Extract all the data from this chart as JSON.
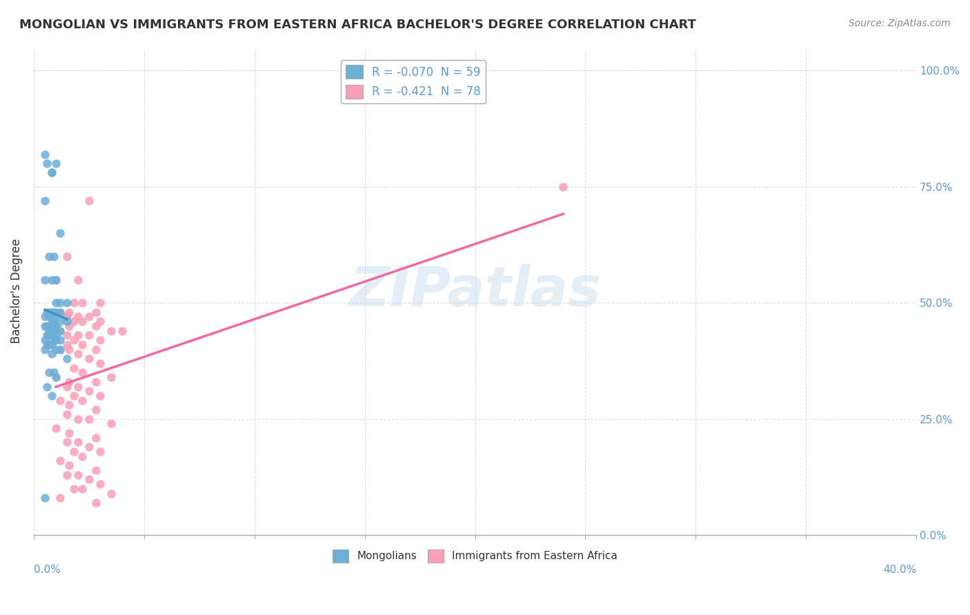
{
  "title": "MONGOLIAN VS IMMIGRANTS FROM EASTERN AFRICA BACHELOR'S DEGREE CORRELATION CHART",
  "source": "Source: ZipAtlas.com",
  "ylabel": "Bachelor's Degree",
  "ylabel_ticks": [
    "0.0%",
    "25.0%",
    "50.0%",
    "75.0%",
    "100.0%"
  ],
  "ylabel_tick_vals": [
    0.0,
    0.25,
    0.5,
    0.75,
    1.0
  ],
  "xlim": [
    0.0,
    0.4
  ],
  "ylim": [
    0.0,
    1.05
  ],
  "legend1_label": "R = -0.070  N = 59",
  "legend2_label": "R = -0.421  N = 78",
  "legend_bottom": "Mongolians",
  "legend_bottom2": "Immigrants from Eastern Africa",
  "blue_color": "#6baed6",
  "pink_color": "#fa9fb5",
  "trend_blue_color": "#4292c6",
  "trend_pink_color": "#f768a1",
  "trend_dashed_color": "#aaaaaa",
  "blue_scatter_x": [
    0.005,
    0.008,
    0.005,
    0.006,
    0.01,
    0.008,
    0.012,
    0.007,
    0.009,
    0.005,
    0.008,
    0.01,
    0.01,
    0.012,
    0.015,
    0.008,
    0.006,
    0.007,
    0.009,
    0.01,
    0.012,
    0.005,
    0.007,
    0.008,
    0.01,
    0.008,
    0.009,
    0.012,
    0.015,
    0.008,
    0.005,
    0.006,
    0.01,
    0.007,
    0.008,
    0.009,
    0.012,
    0.01,
    0.008,
    0.006,
    0.007,
    0.005,
    0.009,
    0.01,
    0.012,
    0.008,
    0.006,
    0.007,
    0.005,
    0.01,
    0.012,
    0.008,
    0.015,
    0.007,
    0.009,
    0.01,
    0.006,
    0.008,
    0.005
  ],
  "blue_scatter_y": [
    0.82,
    0.78,
    0.72,
    0.8,
    0.8,
    0.78,
    0.65,
    0.6,
    0.6,
    0.55,
    0.55,
    0.55,
    0.5,
    0.5,
    0.5,
    0.48,
    0.48,
    0.48,
    0.48,
    0.48,
    0.48,
    0.47,
    0.47,
    0.47,
    0.47,
    0.46,
    0.46,
    0.46,
    0.46,
    0.45,
    0.45,
    0.45,
    0.45,
    0.44,
    0.44,
    0.44,
    0.44,
    0.43,
    0.43,
    0.43,
    0.43,
    0.42,
    0.42,
    0.42,
    0.42,
    0.41,
    0.41,
    0.41,
    0.4,
    0.4,
    0.4,
    0.39,
    0.38,
    0.35,
    0.35,
    0.34,
    0.32,
    0.3,
    0.08
  ],
  "pink_scatter_x": [
    0.01,
    0.025,
    0.015,
    0.02,
    0.03,
    0.018,
    0.022,
    0.012,
    0.016,
    0.028,
    0.014,
    0.02,
    0.015,
    0.025,
    0.03,
    0.018,
    0.022,
    0.01,
    0.016,
    0.028,
    0.035,
    0.012,
    0.04,
    0.015,
    0.02,
    0.025,
    0.03,
    0.01,
    0.018,
    0.022,
    0.015,
    0.016,
    0.028,
    0.012,
    0.02,
    0.025,
    0.03,
    0.018,
    0.022,
    0.035,
    0.01,
    0.016,
    0.028,
    0.015,
    0.02,
    0.025,
    0.03,
    0.018,
    0.022,
    0.012,
    0.016,
    0.028,
    0.015,
    0.02,
    0.025,
    0.24,
    0.035,
    0.01,
    0.016,
    0.028,
    0.015,
    0.02,
    0.025,
    0.03,
    0.018,
    0.022,
    0.012,
    0.016,
    0.028,
    0.015,
    0.02,
    0.025,
    0.03,
    0.018,
    0.022,
    0.035,
    0.012,
    0.028
  ],
  "pink_scatter_y": [
    0.55,
    0.72,
    0.6,
    0.55,
    0.5,
    0.5,
    0.5,
    0.48,
    0.48,
    0.48,
    0.47,
    0.47,
    0.47,
    0.47,
    0.46,
    0.46,
    0.46,
    0.45,
    0.45,
    0.45,
    0.44,
    0.44,
    0.44,
    0.43,
    0.43,
    0.43,
    0.42,
    0.42,
    0.42,
    0.41,
    0.41,
    0.4,
    0.4,
    0.4,
    0.39,
    0.38,
    0.37,
    0.36,
    0.35,
    0.34,
    0.34,
    0.33,
    0.33,
    0.32,
    0.32,
    0.31,
    0.3,
    0.3,
    0.29,
    0.29,
    0.28,
    0.27,
    0.26,
    0.25,
    0.25,
    0.75,
    0.24,
    0.23,
    0.22,
    0.21,
    0.2,
    0.2,
    0.19,
    0.18,
    0.18,
    0.17,
    0.16,
    0.15,
    0.14,
    0.13,
    0.13,
    0.12,
    0.11,
    0.1,
    0.1,
    0.09,
    0.08,
    0.07
  ]
}
